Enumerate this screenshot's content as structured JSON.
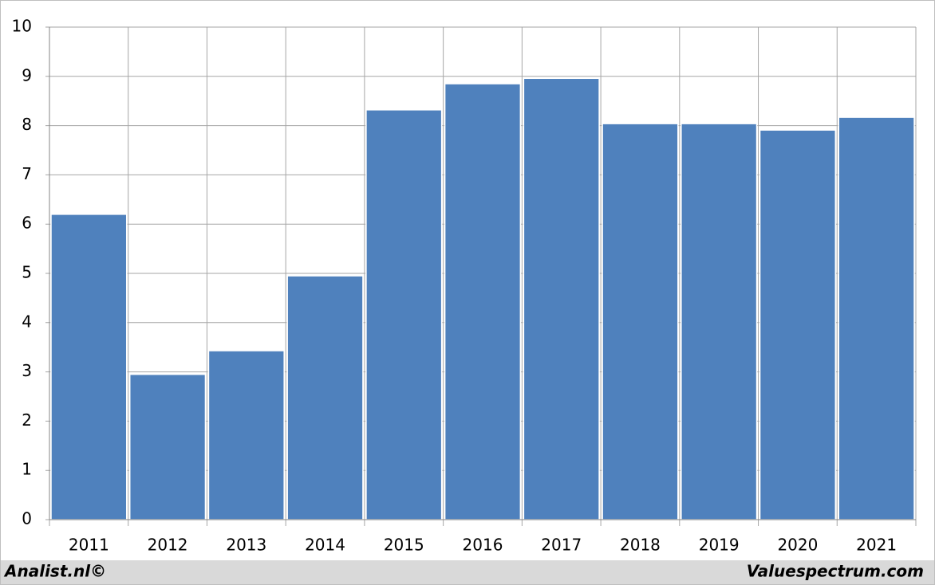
{
  "chart_data": {
    "type": "bar",
    "categories": [
      "2011",
      "2012",
      "2013",
      "2014",
      "2015",
      "2016",
      "2017",
      "2018",
      "2019",
      "2020",
      "2021"
    ],
    "values": [
      6.2,
      2.95,
      3.43,
      4.95,
      8.32,
      8.85,
      8.96,
      8.04,
      8.04,
      7.91,
      8.17
    ],
    "color": "#4f81bd",
    "ylim": [
      0,
      10
    ],
    "yticks": [
      0,
      1,
      2,
      3,
      4,
      5,
      6,
      7,
      8,
      9,
      10
    ],
    "grid": true,
    "source_left": "Analist.nl©",
    "source_right": "Valuespectrum.com"
  }
}
